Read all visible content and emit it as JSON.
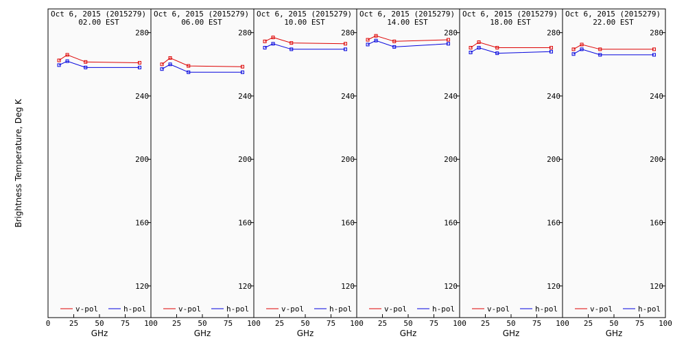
{
  "ylabel": "Brightness Temperature, Deg K",
  "xlabel": "GHz",
  "y_ticks": [
    "280",
    "240",
    "200",
    "160",
    "120"
  ],
  "x_ticks": [
    "0",
    "25",
    "50",
    "75",
    "100"
  ],
  "colors": {
    "v_pol": "#dd0000",
    "h_pol": "#0000dd",
    "background": "#fafafa"
  },
  "chart_data": [
    {
      "type": "line",
      "title": "Oct  6, 2015 (2015279)",
      "subtitle": "02.00 EST",
      "x": [
        10.7,
        18.7,
        36.5,
        89.0
      ],
      "xlim": [
        0,
        100
      ],
      "ylim": [
        100,
        295
      ],
      "grid": false,
      "legend": "bottom",
      "series": [
        {
          "name": "v-pol",
          "values": [
            262.5,
            266.0,
            261.5,
            261.0
          ]
        },
        {
          "name": "h-pol",
          "values": [
            259.5,
            262.0,
            258.0,
            258.0
          ]
        }
      ]
    },
    {
      "type": "line",
      "title": "Oct  6, 2015 (2015279)",
      "subtitle": "06.00 EST",
      "x": [
        10.7,
        18.7,
        36.5,
        89.0
      ],
      "xlim": [
        0,
        100
      ],
      "ylim": [
        100,
        295
      ],
      "grid": false,
      "legend": "bottom",
      "series": [
        {
          "name": "v-pol",
          "values": [
            260.0,
            264.0,
            259.0,
            258.5
          ]
        },
        {
          "name": "h-pol",
          "values": [
            257.0,
            260.0,
            255.0,
            255.0
          ]
        }
      ]
    },
    {
      "type": "line",
      "title": "Oct  6, 2015 (2015279)",
      "subtitle": "10.00 EST",
      "x": [
        10.7,
        18.7,
        36.5,
        89.0
      ],
      "xlim": [
        0,
        100
      ],
      "ylim": [
        100,
        295
      ],
      "grid": false,
      "legend": "bottom",
      "series": [
        {
          "name": "v-pol",
          "values": [
            274.5,
            277.0,
            273.5,
            273.0
          ]
        },
        {
          "name": "h-pol",
          "values": [
            270.5,
            273.0,
            269.5,
            269.5
          ]
        }
      ]
    },
    {
      "type": "line",
      "title": "Oct  6, 2015 (2015279)",
      "subtitle": "14.00 EST",
      "x": [
        10.7,
        18.7,
        36.5,
        89.0
      ],
      "xlim": [
        0,
        100
      ],
      "ylim": [
        100,
        295
      ],
      "grid": false,
      "legend": "bottom",
      "series": [
        {
          "name": "v-pol",
          "values": [
            275.5,
            278.0,
            274.5,
            275.5
          ]
        },
        {
          "name": "h-pol",
          "values": [
            272.5,
            275.0,
            271.0,
            273.0
          ]
        }
      ]
    },
    {
      "type": "line",
      "title": "Oct  6, 2015 (2015279)",
      "subtitle": "18.00 EST",
      "x": [
        10.7,
        18.7,
        36.5,
        89.0
      ],
      "xlim": [
        0,
        100
      ],
      "ylim": [
        100,
        295
      ],
      "grid": false,
      "legend": "bottom",
      "series": [
        {
          "name": "v-pol",
          "values": [
            270.5,
            274.0,
            270.5,
            270.5
          ]
        },
        {
          "name": "h-pol",
          "values": [
            267.5,
            270.5,
            267.0,
            268.0
          ]
        }
      ]
    },
    {
      "type": "line",
      "title": "Oct  6, 2015 (2015279)",
      "subtitle": "22.00 EST",
      "x": [
        10.7,
        18.7,
        36.5,
        89.0
      ],
      "xlim": [
        0,
        100
      ],
      "ylim": [
        100,
        295
      ],
      "grid": false,
      "legend": "bottom",
      "series": [
        {
          "name": "v-pol",
          "values": [
            269.5,
            272.5,
            269.5,
            269.5
          ]
        },
        {
          "name": "h-pol",
          "values": [
            266.5,
            269.5,
            266.0,
            266.0
          ]
        }
      ]
    }
  ]
}
